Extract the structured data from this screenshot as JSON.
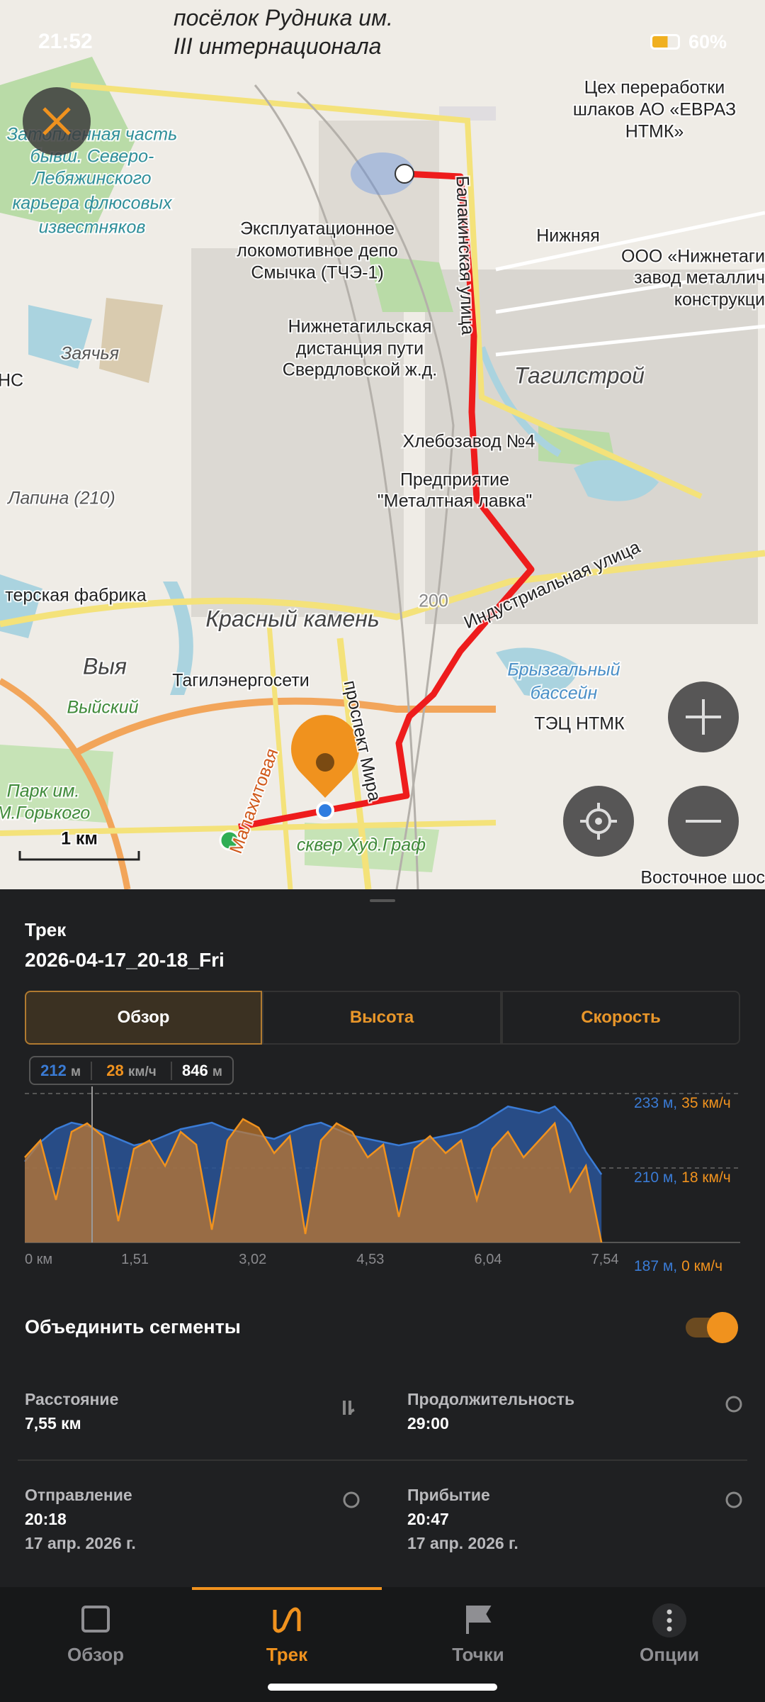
{
  "status": {
    "time": "21:52",
    "battery": "60%"
  },
  "map": {
    "top_label": [
      "посёлок Рудника им.",
      "III интернационала"
    ],
    "labels": [
      "Цех переработки",
      "шлаков АО «ЕВРАЗ",
      "НТМК»",
      "Затопленная часть",
      "бывш. Северо-",
      "Лебяжинского",
      "карьера флюсовых",
      "известняков",
      "Эксплуатационное",
      "локомотивное депо",
      "Смычка (ТЧЭ-1)",
      "Нижняя",
      "ООО «Нижнетаги",
      "завод металлич",
      "конструкци",
      "Нижнетагильская",
      "дистанция пути",
      "Свердловской ж.д.",
      "Тагилстрой",
      "Заячья",
      "НС",
      "Хлебозавод №4",
      "Предприятие",
      "\"Металтная лавка\"",
      "Лапина (210)",
      "терская фабрика",
      "Красный камень",
      "Выя",
      "Выйский",
      "Тагилэнергосети",
      "Брызгальный",
      "бассейн",
      "ТЭЦ НТМК",
      "Парк им.",
      "М.Горького",
      "сквер Худ.Граф",
      "Восточное шос",
      "Балакинская улица",
      "Индустриальная улица",
      "проспект Мира",
      "Малахитовая",
      "200",
      "1 км"
    ]
  },
  "sheet": {
    "label": "Трек",
    "name": "2026-04-17_20-18_Fri",
    "tabs": [
      "Обзор",
      "Высота",
      "Скорость"
    ],
    "pills": [
      {
        "value": "212",
        "unit": "м"
      },
      {
        "value": "28",
        "unit": "км/ч"
      },
      {
        "value": "846",
        "unit": "м"
      }
    ],
    "join_label": "Объединить сегменты",
    "stats": [
      {
        "label": "Расстояние",
        "value": "7,55 км"
      },
      {
        "label": "Продолжительность",
        "value": "29:00"
      },
      {
        "label": "Отправление",
        "value": "20:18",
        "date": "17 апр. 2026 г."
      },
      {
        "label": "Прибытие",
        "value": "20:47",
        "date": "17 апр. 2026 г."
      }
    ]
  },
  "profile": {
    "xlim": [
      0,
      9.18
    ],
    "xticks": [
      {
        "value": 0,
        "label": "0 км"
      },
      {
        "value": 1.51,
        "label": "1,51"
      },
      {
        "value": 3.02,
        "label": "3,02"
      },
      {
        "value": 4.53,
        "label": "4,53"
      },
      {
        "value": 6.04,
        "label": "6,04"
      },
      {
        "value": 7.54,
        "label": "7,54"
      }
    ],
    "x": [
      0,
      0.2,
      0.4,
      0.6,
      0.8,
      1,
      1.2,
      1.4,
      1.6,
      1.8,
      2,
      2.2,
      2.4,
      2.6,
      2.8,
      3,
      3.2,
      3.4,
      3.6,
      3.8,
      4,
      4.2,
      4.4,
      4.6,
      4.8,
      5,
      5.2,
      5.4,
      5.6,
      5.8,
      6,
      6.2,
      6.4,
      6.6,
      6.8,
      7,
      7.2,
      7.4
    ],
    "series": [
      {
        "name": "Высота",
        "color": "#3a7bd5",
        "ylim": [
          187,
          233
        ],
        "yticks": [
          {
            "value": 233,
            "label": "233 м,"
          },
          {
            "value": 210,
            "label": "210 м,"
          },
          {
            "value": 187,
            "label": "187 м,"
          }
        ],
        "values": [
          212,
          218,
          222,
          224,
          223,
          221,
          219,
          217,
          218,
          220,
          222,
          223,
          224,
          222,
          221,
          220,
          219,
          221,
          223,
          224,
          222,
          220,
          219,
          218,
          217,
          218,
          219,
          220,
          221,
          223,
          226,
          229,
          228,
          227,
          229,
          224,
          215,
          208
        ]
      },
      {
        "name": "Скорость",
        "color": "#f0921e",
        "ylim": [
          0,
          35
        ],
        "yticks": [
          {
            "value": 35,
            "label": "35 км/ч"
          },
          {
            "value": 18,
            "label": "18 км/ч"
          },
          {
            "value": 0,
            "label": "0 км/ч"
          }
        ],
        "values": [
          20,
          24,
          10,
          26,
          28,
          25,
          5,
          22,
          24,
          18,
          26,
          23,
          3,
          24,
          29,
          27,
          21,
          25,
          2,
          24,
          28,
          26,
          20,
          23,
          6,
          22,
          25,
          21,
          24,
          10,
          22,
          26,
          20,
          24,
          28,
          12,
          18,
          0
        ]
      }
    ]
  },
  "nav": [
    "Обзор",
    "Трек",
    "Точки",
    "Опции"
  ]
}
